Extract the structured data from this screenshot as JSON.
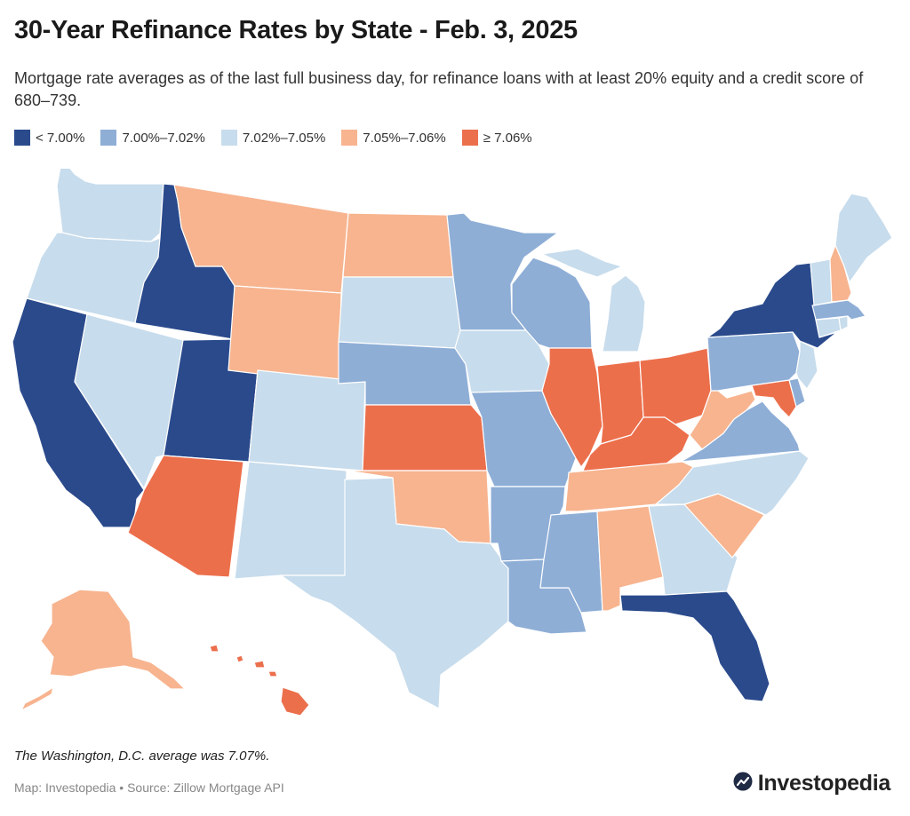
{
  "title": "30-Year Refinance Rates by State - Feb. 3, 2025",
  "subtitle": "Mortgage rate averages as of the last full business day, for refinance loans with at least 20% equity and a credit score of 680–739.",
  "legend": [
    {
      "label": "< 7.00%",
      "color": "#2a4a8c"
    },
    {
      "label": "7.00%–7.02%",
      "color": "#8eaed6"
    },
    {
      "label": "7.02%–7.05%",
      "color": "#c7dcec"
    },
    {
      "label": "7.05%–7.06%",
      "color": "#f7b48f"
    },
    {
      "label": "≥ 7.06%",
      "color": "#ec6f4c"
    }
  ],
  "map": {
    "states": {
      "WA": 2,
      "OR": 2,
      "CA": 0,
      "ID": 0,
      "NV": 2,
      "UT": 0,
      "AZ": 4,
      "MT": 3,
      "WY": 3,
      "CO": 2,
      "NM": 2,
      "ND": 3,
      "SD": 2,
      "NE": 1,
      "KS": 4,
      "OK": 3,
      "TX": 2,
      "MN": 1,
      "IA": 2,
      "MO": 1,
      "AR": 1,
      "LA": 1,
      "WI": 1,
      "IL": 4,
      "MI": 2,
      "IN": 4,
      "OH": 4,
      "KY": 4,
      "TN": 3,
      "MS": 1,
      "AL": 3,
      "GA": 2,
      "FL": 0,
      "SC": 3,
      "NC": 2,
      "VA": 1,
      "WV": 3,
      "MD": 4,
      "DE": 1,
      "PA": 1,
      "NJ": 2,
      "NY": 0,
      "CT": 2,
      "RI": 2,
      "MA": 1,
      "VT": 2,
      "NH": 3,
      "ME": 2,
      "AK": 3,
      "HI": 4
    }
  },
  "footnote": "The Washington, D.C. average was 7.07%.",
  "source": "Map: Investopedia • Source: Zillow Mortgage API",
  "logo": {
    "text": "Investopedia",
    "icon": "investopedia-logo-icon"
  }
}
